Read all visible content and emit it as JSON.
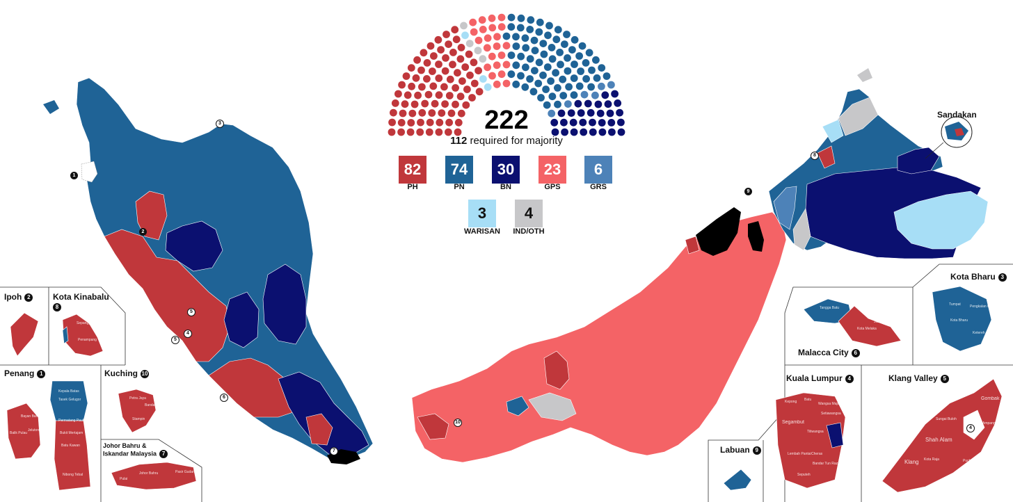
{
  "parliament": {
    "total": "222",
    "majority_number": "112",
    "majority_text": "required for majority"
  },
  "parties": [
    {
      "code": "PH",
      "seats": "82",
      "color": "#c0373b"
    },
    {
      "code": "PN",
      "seats": "74",
      "color": "#1f6396"
    },
    {
      "code": "BN",
      "seats": "30",
      "color": "#0b1070"
    },
    {
      "code": "GPS",
      "seats": "23",
      "color": "#f46366"
    },
    {
      "code": "GRS",
      "seats": "6",
      "color": "#4d82b8"
    },
    {
      "code": "WARISAN",
      "seats": "3",
      "color": "#a7def6"
    },
    {
      "code": "IND/OTH",
      "seats": "4",
      "color": "#c7c7c9"
    }
  ],
  "insets": [
    {
      "title": "Ipoh",
      "num": "2"
    },
    {
      "title": "Kota Kinabalu",
      "num": "8"
    },
    {
      "title": "Penang",
      "num": "1"
    },
    {
      "title": "Kuching",
      "num": "10"
    },
    {
      "title": "Johor Bahru &",
      "title2": "Iskandar Malaysia",
      "num": "7"
    },
    {
      "title": "Kota Bharu",
      "num": "3"
    },
    {
      "title": "Malacca City",
      "num": "6"
    },
    {
      "title": "Kuala Lumpur",
      "num": "4"
    },
    {
      "title": "Klang Valley",
      "num": "5"
    },
    {
      "title": "Labuan",
      "num": "9"
    },
    {
      "title": "Sandakan",
      "num": ""
    }
  ],
  "map_labels": {
    "penang_inset": [
      "Kepala Batas",
      "Tasek Gelugor",
      "Permatang Pauh",
      "Bukit Mertajam",
      "Batu Kawan",
      "Nibong Tebal",
      "Balik Pulau",
      "Bayan Baru",
      "Jelutong"
    ],
    "kuching_inset": [
      "Petra Jaya",
      "Bandar Kuching",
      "Stampin"
    ],
    "kl_inset": [
      "Kepong",
      "Batu",
      "Wangsa Maju",
      "Segambut",
      "Setiawangsa",
      "Titiwangsa",
      "Lembah Pantai",
      "Cheras",
      "Bandar Tun Razak",
      "Seputeh"
    ],
    "klang_inset": [
      "Gombak",
      "Ampang",
      "Sungai Buloh",
      "Shah Alam",
      "Klang",
      "Kota Raja",
      "Puchong"
    ],
    "kk_inset": [
      "Sepanggar",
      "Penampang"
    ],
    "kb_inset": [
      "Tumpat",
      "Pengkalan Chepa",
      "Kota Bharu",
      "Ketereh"
    ],
    "malacca_inset": [
      "Tangga Batu",
      "Kota Melaka",
      "Jasin"
    ],
    "jb_inset": [
      "Pulai",
      "Johor Bahru",
      "Pasir Gudang"
    ]
  }
}
